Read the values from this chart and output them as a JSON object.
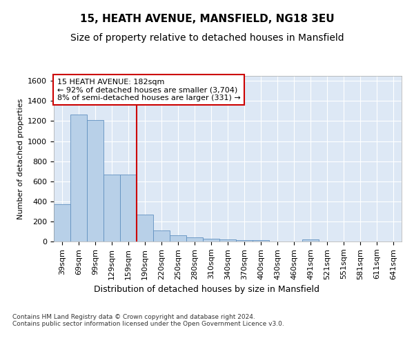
{
  "title1": "15, HEATH AVENUE, MANSFIELD, NG18 3EU",
  "title2": "Size of property relative to detached houses in Mansfield",
  "xlabel": "Distribution of detached houses by size in Mansfield",
  "ylabel": "Number of detached properties",
  "footnote": "Contains HM Land Registry data © Crown copyright and database right 2024.\nContains public sector information licensed under the Open Government Licence v3.0.",
  "categories": [
    "39sqm",
    "69sqm",
    "99sqm",
    "129sqm",
    "159sqm",
    "190sqm",
    "220sqm",
    "250sqm",
    "280sqm",
    "310sqm",
    "340sqm",
    "370sqm",
    "400sqm",
    "430sqm",
    "460sqm",
    "491sqm",
    "521sqm",
    "551sqm",
    "581sqm",
    "611sqm",
    "641sqm"
  ],
  "values": [
    370,
    1265,
    1210,
    668,
    668,
    265,
    112,
    65,
    38,
    28,
    20,
    14,
    14,
    0,
    0,
    20,
    0,
    0,
    0,
    0,
    0
  ],
  "bar_color": "#b8d0e8",
  "bar_edge_color": "#6090c0",
  "vline_color": "#cc0000",
  "annotation_text": "15 HEATH AVENUE: 182sqm\n← 92% of detached houses are smaller (3,704)\n8% of semi-detached houses are larger (331) →",
  "annotation_box_color": "#ffffff",
  "annotation_box_edge": "#cc0000",
  "ylim": [
    0,
    1650
  ],
  "yticks": [
    0,
    200,
    400,
    600,
    800,
    1000,
    1200,
    1400,
    1600
  ],
  "plot_bg": "#dde8f5",
  "grid_color": "#ffffff",
  "title1_fontsize": 11,
  "title2_fontsize": 10,
  "xlabel_fontsize": 9,
  "ylabel_fontsize": 8,
  "tick_fontsize": 8,
  "annot_fontsize": 8
}
